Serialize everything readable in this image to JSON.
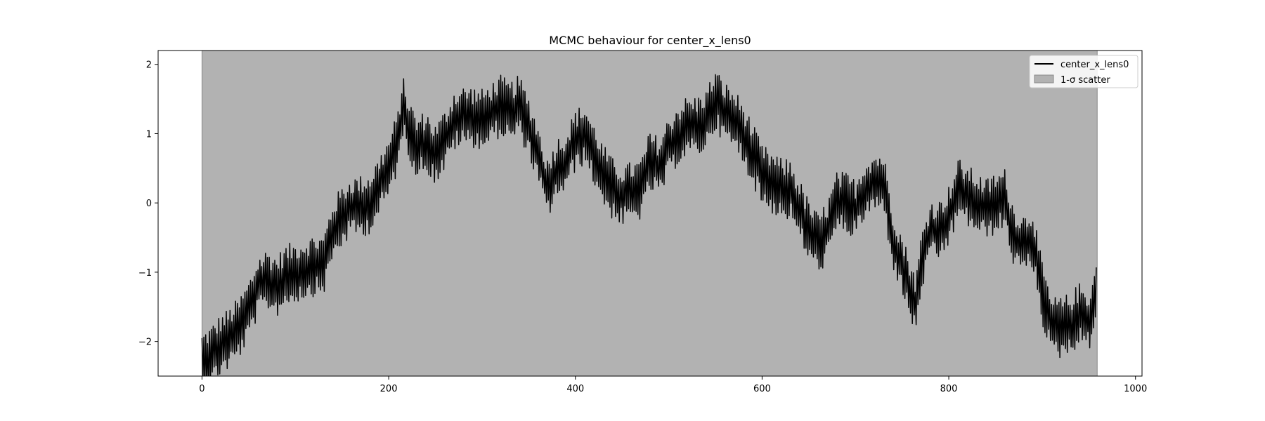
{
  "chart_data": {
    "type": "line",
    "title": "MCMC behaviour for center_x_lens0",
    "xlabel": "",
    "ylabel": "",
    "xlim": [
      -47,
      1007
    ],
    "ylim": [
      -2.5,
      2.2
    ],
    "x_ticks": [
      0,
      200,
      400,
      600,
      800,
      1000
    ],
    "y_ticks": [
      -2,
      -1,
      0,
      1,
      2
    ],
    "grid": false,
    "legend_position": "top-right",
    "series": [
      {
        "name": "center_x_lens0",
        "color": "#000000",
        "jitter": 0.45,
        "anchors": [
          [
            0,
            -2.3
          ],
          [
            10,
            -2.2
          ],
          [
            20,
            -2.05
          ],
          [
            30,
            -1.95
          ],
          [
            40,
            -1.8
          ],
          [
            50,
            -1.55
          ],
          [
            60,
            -1.2
          ],
          [
            70,
            -1.1
          ],
          [
            80,
            -1.2
          ],
          [
            90,
            -1.05
          ],
          [
            100,
            -1.0
          ],
          [
            110,
            -0.95
          ],
          [
            120,
            -0.9
          ],
          [
            130,
            -0.9
          ],
          [
            140,
            -0.4
          ],
          [
            150,
            -0.2
          ],
          [
            160,
            -0.05
          ],
          [
            170,
            -0.05
          ],
          [
            180,
            0.0
          ],
          [
            190,
            0.25
          ],
          [
            200,
            0.5
          ],
          [
            210,
            0.9
          ],
          [
            215,
            1.4
          ],
          [
            220,
            1.15
          ],
          [
            230,
            0.8
          ],
          [
            240,
            0.9
          ],
          [
            250,
            0.7
          ],
          [
            260,
            0.9
          ],
          [
            270,
            1.2
          ],
          [
            280,
            1.25
          ],
          [
            290,
            1.25
          ],
          [
            300,
            1.2
          ],
          [
            310,
            1.3
          ],
          [
            320,
            1.4
          ],
          [
            330,
            1.3
          ],
          [
            340,
            1.4
          ],
          [
            350,
            1.1
          ],
          [
            360,
            0.7
          ],
          [
            370,
            0.2
          ],
          [
            380,
            0.5
          ],
          [
            390,
            0.6
          ],
          [
            400,
            0.9
          ],
          [
            410,
            1.0
          ],
          [
            420,
            0.7
          ],
          [
            430,
            0.4
          ],
          [
            440,
            0.2
          ],
          [
            450,
            0.1
          ],
          [
            460,
            0.15
          ],
          [
            470,
            0.2
          ],
          [
            480,
            0.6
          ],
          [
            490,
            0.5
          ],
          [
            500,
            0.8
          ],
          [
            510,
            1.0
          ],
          [
            520,
            1.1
          ],
          [
            530,
            1.1
          ],
          [
            540,
            1.2
          ],
          [
            550,
            1.5
          ],
          [
            560,
            1.3
          ],
          [
            570,
            1.2
          ],
          [
            580,
            1.0
          ],
          [
            590,
            0.7
          ],
          [
            600,
            0.4
          ],
          [
            610,
            0.3
          ],
          [
            620,
            0.2
          ],
          [
            630,
            0.2
          ],
          [
            640,
            -0.1
          ],
          [
            650,
            -0.4
          ],
          [
            660,
            -0.6
          ],
          [
            670,
            -0.4
          ],
          [
            680,
            0.0
          ],
          [
            690,
            0.0
          ],
          [
            700,
            -0.1
          ],
          [
            710,
            0.2
          ],
          [
            720,
            0.3
          ],
          [
            730,
            0.3
          ],
          [
            740,
            -0.5
          ],
          [
            750,
            -0.9
          ],
          [
            760,
            -1.3
          ],
          [
            765,
            -1.5
          ],
          [
            770,
            -0.9
          ],
          [
            780,
            -0.4
          ],
          [
            790,
            -0.4
          ],
          [
            800,
            -0.2
          ],
          [
            810,
            0.2
          ],
          [
            820,
            0.1
          ],
          [
            830,
            0.0
          ],
          [
            840,
            -0.1
          ],
          [
            850,
            0.0
          ],
          [
            860,
            0.05
          ],
          [
            870,
            -0.5
          ],
          [
            880,
            -0.6
          ],
          [
            890,
            -0.5
          ],
          [
            900,
            -1.3
          ],
          [
            910,
            -1.8
          ],
          [
            920,
            -1.8
          ],
          [
            930,
            -1.75
          ],
          [
            940,
            -1.6
          ],
          [
            950,
            -1.7
          ],
          [
            958,
            -1.3
          ]
        ]
      }
    ],
    "scatter_band": {
      "name": "1-σ scatter",
      "color": "#b2b2b2",
      "x_range": [
        0,
        959
      ],
      "y_range": [
        -2.5,
        2.2
      ]
    }
  },
  "legend": {
    "items": [
      {
        "label": "center_x_lens0",
        "kind": "line",
        "color": "#000000"
      },
      {
        "label": "1-σ scatter",
        "kind": "patch",
        "color": "#b2b2b2"
      }
    ]
  }
}
